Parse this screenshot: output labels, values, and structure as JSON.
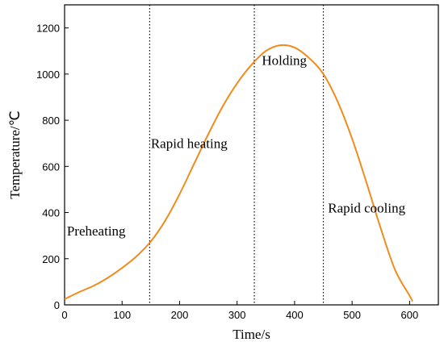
{
  "chart_data": {
    "type": "line",
    "title": "",
    "xlabel": "Time/s",
    "ylabel": "Temperature/℃",
    "xlim": [
      0,
      650
    ],
    "ylim": [
      0,
      1300
    ],
    "xticks": [
      0,
      100,
      200,
      300,
      400,
      500,
      600
    ],
    "yticks": [
      0,
      200,
      400,
      600,
      800,
      1000,
      1200
    ],
    "grid": false,
    "line_color": "#f08c1e",
    "series": [
      {
        "x": [
          0,
          25,
          50,
          75,
          100,
          125,
          150,
          175,
          200,
          225,
          250,
          275,
          300,
          325,
          350,
          375,
          400,
          425,
          450,
          475,
          500,
          525,
          550,
          575,
          600,
          605
        ],
        "y": [
          25,
          55,
          82,
          117,
          160,
          210,
          275,
          365,
          480,
          610,
          740,
          860,
          960,
          1040,
          1100,
          1125,
          1115,
          1070,
          1000,
          880,
          720,
          530,
          330,
          150,
          40,
          15
        ]
      }
    ],
    "vlines": [
      148,
      330,
      450
    ],
    "phases": [
      {
        "label": "Preheating",
        "x": 4,
        "y": 300
      },
      {
        "label": "Rapid heating",
        "x": 150,
        "y": 680
      },
      {
        "label": "Holding",
        "x": 343,
        "y": 1040
      },
      {
        "label": "Rapid cooling",
        "x": 458,
        "y": 400
      }
    ]
  }
}
